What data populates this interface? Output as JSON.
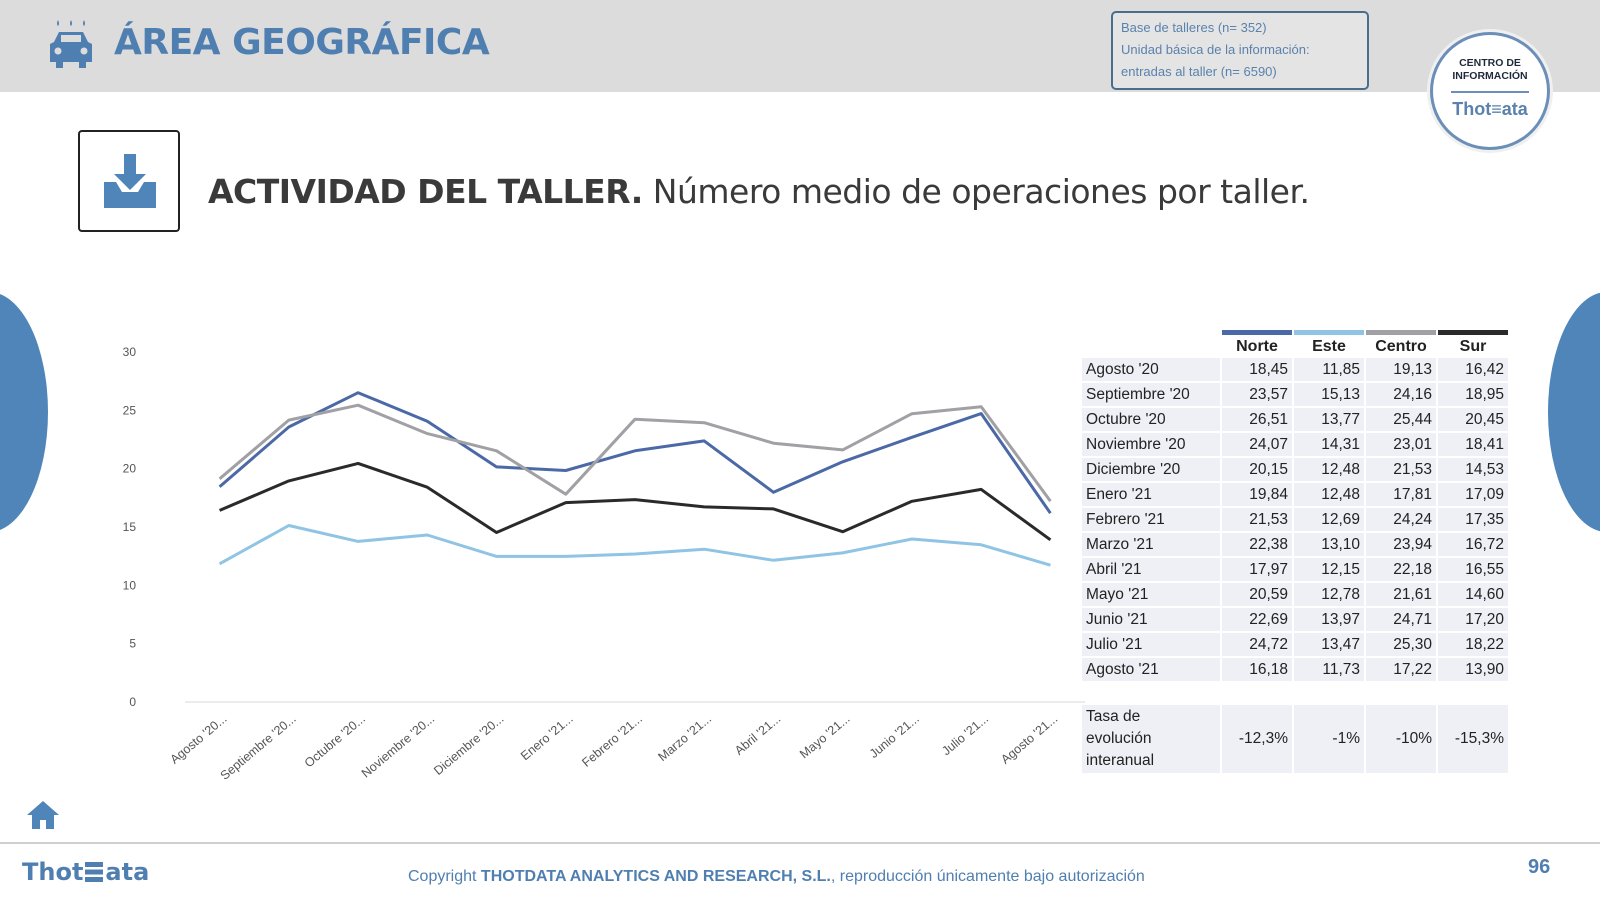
{
  "header": {
    "section_title": "ÁREA GEOGRÁFICA",
    "info_lines": [
      "Base de talleres (n= 352)",
      "Unidad básica de la información:",
      "entradas al taller (n= 6590)"
    ],
    "badge_top": "CENTRO DE INFORMACIÓN",
    "badge_brand": "Thot≡ata"
  },
  "subtitle": {
    "bold": "ACTIVIDAD DEL TALLER.",
    "rest": " Número medio de operaciones por taller."
  },
  "colors": {
    "accent": "#4f7fb0",
    "Norte": "#4a69a6",
    "Este": "#8fc4e4",
    "Centro": "#a0a0a5",
    "Sur": "#2a2a2a"
  },
  "chart_data": {
    "type": "line",
    "categories": [
      "Agosto '20...",
      "Septiembre '20...",
      "Octubre '20...",
      "Noviembre '20...",
      "Diciembre '20...",
      "Enero '21...",
      "Febrero '21...",
      "Marzo '21...",
      "Abril '21...",
      "Mayo '21...",
      "Junio '21...",
      "Julio '21...",
      "Agosto '21..."
    ],
    "series": [
      {
        "name": "Norte",
        "values": [
          18.45,
          23.57,
          26.51,
          24.07,
          20.15,
          19.84,
          21.53,
          22.38,
          17.97,
          20.59,
          22.69,
          24.72,
          16.18
        ]
      },
      {
        "name": "Este",
        "values": [
          11.85,
          15.13,
          13.77,
          14.31,
          12.48,
          12.48,
          12.69,
          13.1,
          12.15,
          12.78,
          13.97,
          13.47,
          11.73
        ]
      },
      {
        "name": "Centro",
        "values": [
          19.13,
          24.16,
          25.44,
          23.01,
          21.53,
          17.81,
          24.24,
          23.94,
          22.18,
          21.61,
          24.71,
          25.3,
          17.22
        ]
      },
      {
        "name": "Sur",
        "values": [
          16.42,
          18.95,
          20.45,
          18.41,
          14.53,
          17.09,
          17.35,
          16.72,
          16.55,
          14.6,
          17.2,
          18.22,
          13.9
        ]
      }
    ],
    "ylim": [
      0,
      30
    ],
    "yticks": [
      "0",
      "5",
      "10",
      "15",
      "20",
      "25",
      "30"
    ],
    "grid": false
  },
  "table": {
    "headers": [
      "Norte",
      "Este",
      "Centro",
      "Sur"
    ],
    "rows": [
      {
        "label": "Agosto '20",
        "values": [
          "18,45",
          "11,85",
          "19,13",
          "16,42"
        ]
      },
      {
        "label": "Septiembre '20",
        "values": [
          "23,57",
          "15,13",
          "24,16",
          "18,95"
        ]
      },
      {
        "label": "Octubre '20",
        "values": [
          "26,51",
          "13,77",
          "25,44",
          "20,45"
        ]
      },
      {
        "label": "Noviembre '20",
        "values": [
          "24,07",
          "14,31",
          "23,01",
          "18,41"
        ]
      },
      {
        "label": "Diciembre '20",
        "values": [
          "20,15",
          "12,48",
          "21,53",
          "14,53"
        ]
      },
      {
        "label": "Enero '21",
        "values": [
          "19,84",
          "12,48",
          "17,81",
          "17,09"
        ]
      },
      {
        "label": "Febrero '21",
        "values": [
          "21,53",
          "12,69",
          "24,24",
          "17,35"
        ]
      },
      {
        "label": "Marzo '21",
        "values": [
          "22,38",
          "13,10",
          "23,94",
          "16,72"
        ]
      },
      {
        "label": "Abril '21",
        "values": [
          "17,97",
          "12,15",
          "22,18",
          "16,55"
        ]
      },
      {
        "label": "Mayo '21",
        "values": [
          "20,59",
          "12,78",
          "21,61",
          "14,60"
        ]
      },
      {
        "label": "Junio '21",
        "values": [
          "22,69",
          "13,97",
          "24,71",
          "17,20"
        ]
      },
      {
        "label": "Julio '21",
        "values": [
          "24,72",
          "13,47",
          "25,30",
          "18,22"
        ]
      },
      {
        "label": "Agosto '21",
        "values": [
          "16,18",
          "11,73",
          "17,22",
          "13,90"
        ]
      }
    ],
    "rate_label_lines": [
      "Tasa de",
      "evolución",
      "interanual"
    ],
    "rate_values": [
      "-12,3%",
      "-1%",
      "-10%",
      "-15,3%"
    ]
  },
  "footer": {
    "logo_left": "Thot",
    "logo_right": "ata",
    "copyright_prefix": "Copyright ",
    "copyright_bold": "THOTDATA ANALYTICS AND RESEARCH, S.L.",
    "copyright_suffix": ", reproducción únicamente bajo autorización",
    "page_number": "96"
  }
}
